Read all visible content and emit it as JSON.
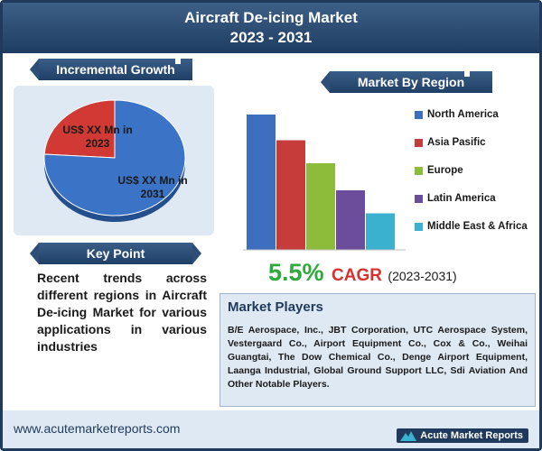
{
  "header": {
    "title_line1": "Aircraft De-icing Market",
    "title_line2": "2023 - 2031"
  },
  "incremental_growth": {
    "banner": "Incremental Growth",
    "label_2023": [
      "US$ XX Mn in",
      "2023"
    ],
    "label_2031": [
      "US$ XX Mn in",
      "2031"
    ]
  },
  "key_point": {
    "banner": "Key Point",
    "text": "Recent trends across different regions in Aircraft De-icing Market for various applications in various industries"
  },
  "region": {
    "banner": "Market By Region"
  },
  "cagr": {
    "value": "5.5%",
    "label": "CAGR",
    "period": "(2023-2031)"
  },
  "players": {
    "title": "Market Players",
    "text": "B/E Aerospace, Inc., JBT Corporation, UTC Aerospace System, Vestergaard Co., Airport Equipment Co., Cox & Co., Weihai Guangtai, The Dow Chemical Co., Denge Airport Equipment, Laanga Industrial, Global Ground Support LLC, Sdi Aviation And Other Notable Players."
  },
  "footer": {
    "url": "www.acutemarketreports.com",
    "logo": "Acute Market Reports"
  },
  "chart_data": [
    {
      "type": "pie",
      "categories": [
        "2023",
        "2031"
      ],
      "values": [
        0.24,
        0.76
      ],
      "colors": [
        "#d13a34",
        "#3b73c6"
      ]
    },
    {
      "type": "bar",
      "categories": [
        "North America",
        "Asia Pasific",
        "Europe",
        "Latin America",
        "Middle East & Africa"
      ],
      "values": [
        100,
        81,
        64,
        44,
        27
      ],
      "colors": [
        "#3c6fc0",
        "#c53c3a",
        "#8dbb3a",
        "#6c4d9b",
        "#3ab1cf"
      ],
      "legend": "right",
      "grid": false
    }
  ]
}
